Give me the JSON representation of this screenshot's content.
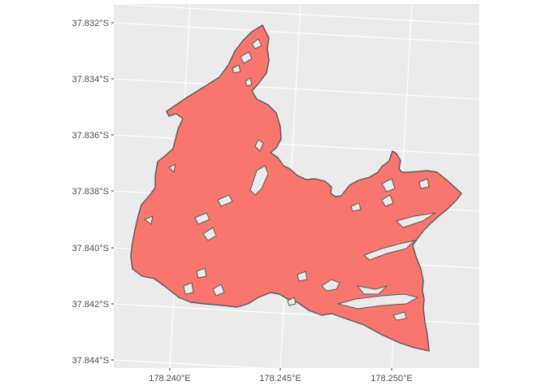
{
  "colors": {
    "panel_bg": "#ebebeb",
    "grid_major": "#ffffff",
    "fill": "#f8766d",
    "stroke": "#595959",
    "tick_text": "#4d4d4d",
    "axis_tick": "#333333"
  },
  "map": {
    "y_tick_labels": [
      "37.832°S",
      "37.834°S",
      "37.836°S",
      "37.838°S",
      "37.840°S",
      "37.842°S",
      "37.844°S"
    ],
    "x_tick_labels": [
      "178.240°E",
      "178.245°E",
      "178.250°E"
    ],
    "grid": true,
    "feature": "polygon"
  }
}
